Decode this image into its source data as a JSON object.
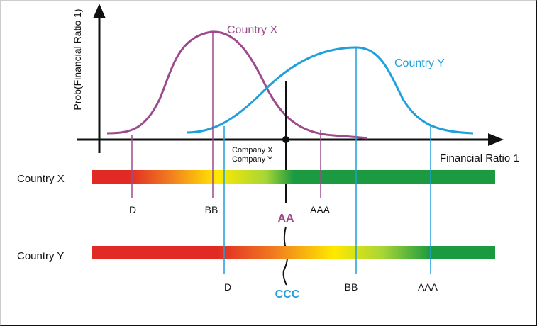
{
  "y_axis_label": "Prob(Financial Ratio 1)",
  "x_axis_label": "Financial Ratio 1",
  "curves": [
    {
      "name": "Country X",
      "color": "#9b4a8c"
    },
    {
      "name": "Country Y",
      "color": "#1f9fdc"
    }
  ],
  "companies_label_line1": "Company X",
  "companies_label_line2": "Company Y",
  "bars": [
    {
      "label": "Country X",
      "colors": [
        "#e12a24",
        "#f07a20",
        "#ffe900",
        "#a8d636",
        "#1b9a40"
      ],
      "ratings": [
        "D",
        "BB",
        "AAA"
      ],
      "highlight_rating": "AA",
      "highlight_color": "#9b4a8c"
    },
    {
      "label": "Country Y",
      "colors": [
        "#e12a24",
        "#f07a20",
        "#ffe900",
        "#a8d636",
        "#1b9a40"
      ],
      "ratings": [
        "D",
        "BB",
        "AAA"
      ],
      "highlight_rating": "CCC",
      "highlight_color": "#1f9fdc"
    }
  ]
}
